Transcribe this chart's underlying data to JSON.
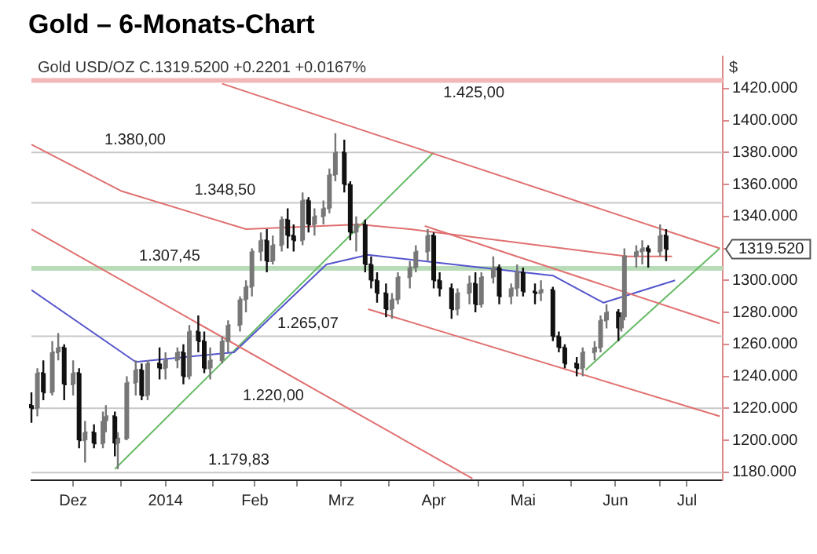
{
  "chart_data": {
    "type": "candlestick",
    "title": "Gold – 6-Monats-Chart",
    "subtitle": "Gold USD/OZ C.1319.5200 +0.2201 +0.0167%",
    "ylabel": "$",
    "colors": [
      "#111111",
      "#777777",
      "#111111",
      "#777777",
      "#777777",
      "#111111",
      "#777777",
      "#111111",
      "#777777",
      "#111111",
      "#777777",
      "#777777",
      "#111111",
      "#777777",
      "#777777",
      "#777777",
      "#111111",
      "#777777",
      "#111111",
      "#777777",
      "#777777",
      "#111111",
      "#777777",
      "#111111",
      "#111111",
      "#777777",
      "#777777",
      "#777777",
      "#777777",
      "#777777",
      "#777777",
      "#777777",
      "#111111",
      "#777777",
      "#777777",
      "#111111",
      "#111111",
      "#777777",
      "#111111",
      "#777777",
      "#777777",
      "#777777",
      "#777777",
      "#111111",
      "#111111",
      "#777777",
      "#111111",
      "#111111",
      "#111111",
      "#111111",
      "#777777",
      "#777777",
      "#777777",
      "#777777",
      "#777777",
      "#111111",
      "#111111",
      "#111111",
      "#777777",
      "#777777",
      "#111111",
      "#777777",
      "#777777",
      "#111111",
      "#777777",
      "#777777",
      "#111111",
      "#111111",
      "#777777",
      "#111111",
      "#111111",
      "#111111",
      "#111111",
      "#777777",
      "#777777",
      "#777777",
      "#777777",
      "#111111",
      "#777777",
      "#777777",
      "#777777",
      "#777777",
      "#111111",
      "#777777",
      "#111111"
    ],
    "x": [
      "2013-12-02",
      "2013-12-04",
      "2013-12-06",
      "2013-12-09",
      "2013-12-11",
      "2013-12-13",
      "2013-12-16",
      "2013-12-18",
      "2013-12-20",
      "2013-12-23",
      "2013-12-26",
      "2013-12-27",
      "2013-12-30",
      "2013-12-31",
      "2014-01-03",
      "2014-01-06",
      "2014-01-08",
      "2014-01-10",
      "2014-01-14",
      "2014-01-16",
      "2014-01-20",
      "2014-01-22",
      "2014-01-24",
      "2014-01-27",
      "2014-01-29",
      "2014-01-31",
      "2014-02-04",
      "2014-02-06",
      "2014-02-10",
      "2014-02-12",
      "2014-02-14",
      "2014-02-17",
      "2014-02-19",
      "2014-02-21",
      "2014-02-24",
      "2014-02-26",
      "2014-02-28",
      "2014-03-03",
      "2014-03-05",
      "2014-03-07",
      "2014-03-10",
      "2014-03-12",
      "2014-03-14",
      "2014-03-17",
      "2014-03-19",
      "2014-03-21",
      "2014-03-24",
      "2014-03-26",
      "2014-03-28",
      "2014-03-31",
      "2014-04-02",
      "2014-04-04",
      "2014-04-08",
      "2014-04-10",
      "2014-04-14",
      "2014-04-16",
      "2014-04-18",
      "2014-04-22",
      "2014-04-24",
      "2014-04-28",
      "2014-04-30",
      "2014-05-02",
      "2014-05-06",
      "2014-05-08",
      "2014-05-12",
      "2014-05-14",
      "2014-05-16",
      "2014-05-20",
      "2014-05-22",
      "2014-05-26",
      "2014-05-28",
      "2014-05-30",
      "2014-06-03",
      "2014-06-05",
      "2014-06-09",
      "2014-06-11",
      "2014-06-13",
      "2014-06-17",
      "2014-06-18",
      "2014-06-19",
      "2014-06-23",
      "2014-06-25",
      "2014-06-27",
      "2014-07-01",
      "2014-07-03"
    ],
    "ohlc": [
      [
        1222,
        1230,
        1211,
        1220
      ],
      [
        1220,
        1245,
        1215,
        1242
      ],
      [
        1242,
        1250,
        1225,
        1230
      ],
      [
        1230,
        1262,
        1228,
        1255
      ],
      [
        1255,
        1267,
        1250,
        1258
      ],
      [
        1258,
        1260,
        1225,
        1235
      ],
      [
        1235,
        1250,
        1228,
        1242
      ],
      [
        1242,
        1245,
        1195,
        1200
      ],
      [
        1200,
        1212,
        1186,
        1205
      ],
      [
        1205,
        1210,
        1195,
        1198
      ],
      [
        1198,
        1218,
        1195,
        1212
      ],
      [
        1212,
        1222,
        1205,
        1215
      ],
      [
        1215,
        1218,
        1190,
        1198
      ],
      [
        1198,
        1205,
        1182,
        1201
      ],
      [
        1201,
        1240,
        1200,
        1236
      ],
      [
        1236,
        1250,
        1228,
        1244
      ],
      [
        1244,
        1248,
        1225,
        1228
      ],
      [
        1228,
        1250,
        1225,
        1248
      ],
      [
        1248,
        1258,
        1238,
        1245
      ],
      [
        1245,
        1255,
        1238,
        1250
      ],
      [
        1250,
        1258,
        1245,
        1255
      ],
      [
        1255,
        1260,
        1235,
        1240
      ],
      [
        1240,
        1272,
        1238,
        1268
      ],
      [
        1268,
        1278,
        1255,
        1262
      ],
      [
        1262,
        1268,
        1242,
        1245
      ],
      [
        1245,
        1258,
        1238,
        1250
      ],
      [
        1250,
        1265,
        1248,
        1262
      ],
      [
        1262,
        1275,
        1255,
        1272
      ],
      [
        1272,
        1290,
        1268,
        1288
      ],
      [
        1288,
        1300,
        1280,
        1296
      ],
      [
        1296,
        1320,
        1290,
        1318
      ],
      [
        1318,
        1330,
        1312,
        1325
      ],
      [
        1325,
        1332,
        1305,
        1312
      ],
      [
        1312,
        1328,
        1310,
        1322
      ],
      [
        1322,
        1340,
        1318,
        1338
      ],
      [
        1338,
        1345,
        1320,
        1328
      ],
      [
        1328,
        1335,
        1318,
        1325
      ],
      [
        1325,
        1355,
        1322,
        1350
      ],
      [
        1350,
        1352,
        1330,
        1335
      ],
      [
        1335,
        1345,
        1328,
        1340
      ],
      [
        1340,
        1350,
        1335,
        1345
      ],
      [
        1345,
        1370,
        1342,
        1366
      ],
      [
        1366,
        1392,
        1362,
        1380
      ],
      [
        1380,
        1388,
        1355,
        1360
      ],
      [
        1360,
        1362,
        1325,
        1330
      ],
      [
        1330,
        1340,
        1318,
        1335
      ],
      [
        1335,
        1338,
        1305,
        1310
      ],
      [
        1310,
        1315,
        1295,
        1300
      ],
      [
        1300,
        1305,
        1286,
        1292
      ],
      [
        1292,
        1298,
        1277,
        1282
      ],
      [
        1282,
        1292,
        1276,
        1288
      ],
      [
        1288,
        1305,
        1285,
        1302
      ],
      [
        1302,
        1312,
        1295,
        1308
      ],
      [
        1308,
        1322,
        1305,
        1318
      ],
      [
        1318,
        1332,
        1312,
        1328
      ],
      [
        1328,
        1330,
        1295,
        1300
      ],
      [
        1300,
        1305,
        1290,
        1295
      ],
      [
        1295,
        1298,
        1276,
        1282
      ],
      [
        1282,
        1295,
        1278,
        1292
      ],
      [
        1292,
        1303,
        1285,
        1298
      ],
      [
        1298,
        1305,
        1280,
        1285
      ],
      [
        1285,
        1305,
        1283,
        1302
      ],
      [
        1302,
        1315,
        1298,
        1308
      ],
      [
        1308,
        1310,
        1285,
        1290
      ],
      [
        1290,
        1298,
        1285,
        1295
      ],
      [
        1295,
        1310,
        1290,
        1305
      ],
      [
        1305,
        1308,
        1290,
        1293
      ],
      [
        1293,
        1298,
        1285,
        1292
      ],
      [
        1292,
        1300,
        1287,
        1294
      ],
      [
        1294,
        1296,
        1262,
        1265
      ],
      [
        1265,
        1268,
        1255,
        1258
      ],
      [
        1258,
        1260,
        1245,
        1248
      ],
      [
        1248,
        1252,
        1240,
        1245
      ],
      [
        1245,
        1258,
        1240,
        1255
      ],
      [
        1255,
        1262,
        1250,
        1258
      ],
      [
        1258,
        1278,
        1255,
        1275
      ],
      [
        1275,
        1285,
        1270,
        1280
      ],
      [
        1280,
        1282,
        1262,
        1270
      ],
      [
        1270,
        1280,
        1268,
        1277
      ],
      [
        1277,
        1320,
        1275,
        1315
      ],
      [
        1315,
        1322,
        1308,
        1318
      ],
      [
        1318,
        1325,
        1310,
        1320
      ],
      [
        1320,
        1322,
        1308,
        1318
      ],
      [
        1318,
        1335,
        1315,
        1328
      ],
      [
        1328,
        1332,
        1312,
        1319.52
      ]
    ],
    "series": [
      {
        "type": "line",
        "color": "#e07070",
        "x": [
          "2014-02-04",
          "2014-07-21"
        ],
        "values": [
          1423,
          1320
        ]
      },
      {
        "type": "line",
        "color": "#e07070",
        "x": [
          "2013-12-02",
          "2014-04-29"
        ],
        "values": [
          1332,
          1176
        ]
      },
      {
        "type": "line",
        "color": "#e07070",
        "x": [
          "2014-04-13",
          "2014-07-21"
        ],
        "values": [
          1334,
          1273
        ]
      },
      {
        "type": "line",
        "color": "#e07070",
        "x": [
          "2014-03-25",
          "2014-07-21"
        ],
        "values": [
          1282,
          1215
        ]
      },
      {
        "type": "line",
        "color": "#e07070",
        "x": [
          "2013-12-02",
          "2014-01-01",
          "2014-02-12",
          "2014-03-22",
          "2014-04-08",
          "2014-05-08",
          "2014-06-20",
          "2014-07-05"
        ],
        "values": [
          1385,
          1356,
          1332,
          1335,
          1332,
          1325,
          1315,
          1315
        ]
      },
      {
        "type": "line",
        "color": "#5555cc",
        "x": [
          "2013-12-02",
          "2014-01-06",
          "2014-02-08",
          "2014-03-11",
          "2014-03-25",
          "2014-04-08",
          "2014-05-26",
          "2014-06-12",
          "2014-07-06"
        ],
        "values": [
          1294,
          1249,
          1255,
          1310,
          1316,
          1313,
          1303,
          1286,
          1300
        ]
      },
      {
        "type": "line",
        "color": "#66bb66",
        "x": [
          "2013-12-30",
          "2014-04-16"
        ],
        "values": [
          1182,
          1380
        ]
      },
      {
        "type": "line",
        "color": "#66bb66",
        "x": [
          "2014-06-06",
          "2014-07-21"
        ],
        "values": [
          1244,
          1320
        ]
      }
    ],
    "xlim": [
      "2013-12-02",
      "2014-07-22"
    ],
    "xticks": [
      {
        "value": "2013-12-16",
        "label": "Dez"
      },
      {
        "value": "2014-01-01",
        "label": null
      },
      {
        "value": "2014-01-16",
        "label": "2014"
      },
      {
        "value": "2014-02-01",
        "label": null
      },
      {
        "value": "2014-02-15",
        "label": "Feb"
      },
      {
        "value": "2014-03-01",
        "label": null
      },
      {
        "value": "2014-03-16",
        "label": "Mrz"
      },
      {
        "value": "2014-04-01",
        "label": null
      },
      {
        "value": "2014-04-16",
        "label": "Apr"
      },
      {
        "value": "2014-05-01",
        "label": null
      },
      {
        "value": "2014-05-16",
        "label": "Mai"
      },
      {
        "value": "2014-06-01",
        "label": null
      },
      {
        "value": "2014-06-16",
        "label": "Jun"
      },
      {
        "value": "2014-07-01",
        "label": null
      },
      {
        "value": "2014-07-10",
        "label": "Jul"
      }
    ],
    "ylim": [
      1175,
      1440
    ],
    "yticks": [
      {
        "value": 1180,
        "label": "1180.000"
      },
      {
        "value": 1200,
        "label": "1200.000"
      },
      {
        "value": 1220,
        "label": "1220.000"
      },
      {
        "value": 1240,
        "label": "1240.000"
      },
      {
        "value": 1260,
        "label": "1260.000"
      },
      {
        "value": 1280,
        "label": "1280.000"
      },
      {
        "value": 1300,
        "label": "1300.000"
      },
      {
        "value": 1320,
        "label": null
      },
      {
        "value": 1340,
        "label": "1340.000"
      },
      {
        "value": 1360,
        "label": "1360.000"
      },
      {
        "value": 1380,
        "label": "1380.000"
      },
      {
        "value": 1400,
        "label": "1400.000"
      },
      {
        "value": 1420,
        "label": "1420.000"
      }
    ],
    "ref_lines": [
      {
        "axis": "y",
        "value": 1425,
        "label": "1.425,00",
        "color": "#f2b8b8"
      },
      {
        "axis": "y",
        "value": 1380,
        "label": "1.380,00",
        "color": "#c8c8c8"
      },
      {
        "axis": "y",
        "value": 1348.5,
        "label": "1.348,50",
        "color": "#c8c8c8"
      },
      {
        "axis": "y",
        "value": 1307.45,
        "label": "1.307,45",
        "color": "#b8dcb8"
      },
      {
        "axis": "y",
        "value": 1265.07,
        "label": "1.265,07",
        "color": "#c8c8c8"
      },
      {
        "axis": "y",
        "value": 1220,
        "label": "1.220,00",
        "color": "#c8c8c8"
      },
      {
        "axis": "y",
        "value": 1179.83,
        "label": "1.179,83",
        "color": "#c8c8c8"
      }
    ],
    "annotations": [
      "1319.520"
    ],
    "legend": false
  }
}
